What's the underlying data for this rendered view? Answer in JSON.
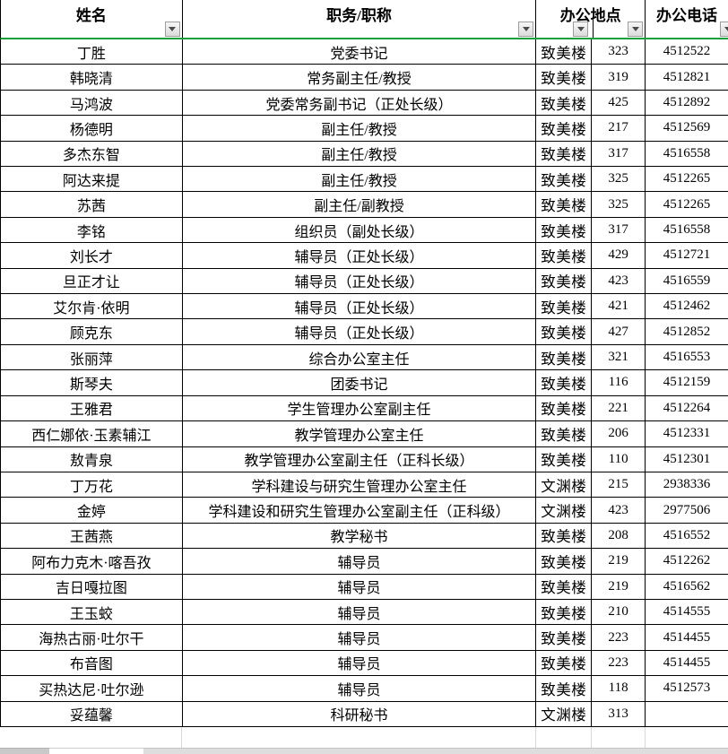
{
  "header": {
    "name": "姓名",
    "position": "职务/职称",
    "location": "办公地点",
    "phone": "办公电话"
  },
  "colors": {
    "selection_green": "#18a03c"
  },
  "rows": [
    {
      "name": "丁胜",
      "position": "党委书记",
      "building": "致美楼",
      "room": "323",
      "phone": "4512522"
    },
    {
      "name": "韩晓清",
      "position": "常务副主任/教授",
      "building": "致美楼",
      "room": "319",
      "phone": "4512821"
    },
    {
      "name": "马鸿波",
      "position": "党委常务副书记（正处长级）",
      "building": "致美楼",
      "room": "425",
      "phone": "4512892"
    },
    {
      "name": "杨德明",
      "position": "副主任/教授",
      "building": "致美楼",
      "room": "217",
      "phone": "4512569"
    },
    {
      "name": "多杰东智",
      "position": "副主任/教授",
      "building": "致美楼",
      "room": "317",
      "phone": "4516558"
    },
    {
      "name": "阿达来提",
      "position": "副主任/教授",
      "building": "致美楼",
      "room": "325",
      "phone": "4512265"
    },
    {
      "name": "苏茜",
      "position": "副主任/副教授",
      "building": "致美楼",
      "room": "325",
      "phone": "4512265"
    },
    {
      "name": "李铭",
      "position": "组织员（副处长级）",
      "building": "致美楼",
      "room": "317",
      "phone": "4516558"
    },
    {
      "name": "刘长才",
      "position": "辅导员（正处长级）",
      "building": "致美楼",
      "room": "429",
      "phone": "4512721"
    },
    {
      "name": "旦正才让",
      "position": "辅导员（正处长级）",
      "building": "致美楼",
      "room": "423",
      "phone": "4516559"
    },
    {
      "name": "艾尔肯·依明",
      "position": "辅导员（正处长级）",
      "building": "致美楼",
      "room": "421",
      "phone": "4512462"
    },
    {
      "name": "顾克东",
      "position": "辅导员（正处长级）",
      "building": "致美楼",
      "room": "427",
      "phone": "4512852"
    },
    {
      "name": "张丽萍",
      "position": "综合办公室主任",
      "building": "致美楼",
      "room": "321",
      "phone": "4516553"
    },
    {
      "name": "斯琴夫",
      "position": "团委书记",
      "building": "致美楼",
      "room": "116",
      "phone": "4512159"
    },
    {
      "name": "王雅君",
      "position": "学生管理办公室副主任",
      "building": "致美楼",
      "room": "221",
      "phone": "4512264"
    },
    {
      "name": "西仁娜依·玉素辅江",
      "position": "教学管理办公室主任",
      "building": "致美楼",
      "room": "206",
      "phone": "4512331"
    },
    {
      "name": "敖青泉",
      "position": "教学管理办公室副主任（正科长级）",
      "building": "致美楼",
      "room": "110",
      "phone": "4512301"
    },
    {
      "name": "丁万花",
      "position": "学科建设与研究生管理办公室主任",
      "building": "文渊楼",
      "room": "215",
      "phone": "2938336"
    },
    {
      "name": "金婷",
      "position": "学科建设和研究生管理办公室副主任（正科级）",
      "building": "文渊楼",
      "room": "423",
      "phone": "2977506"
    },
    {
      "name": "王茜燕",
      "position": "教学秘书",
      "building": "致美楼",
      "room": "208",
      "phone": "4516552"
    },
    {
      "name": "阿布力克木·喀吾孜",
      "position": "辅导员",
      "building": "致美楼",
      "room": "219",
      "phone": "4512262"
    },
    {
      "name": "吉日嘎拉图",
      "position": "辅导员",
      "building": "致美楼",
      "room": "219",
      "phone": "4516562"
    },
    {
      "name": "王玉蛟",
      "position": "辅导员",
      "building": "致美楼",
      "room": "210",
      "phone": "4514555"
    },
    {
      "name": "海热古丽·吐尔干",
      "position": "辅导员",
      "building": "致美楼",
      "room": "223",
      "phone": "4514455"
    },
    {
      "name": "布音图",
      "position": "辅导员",
      "building": "致美楼",
      "room": "223",
      "phone": "4514455"
    },
    {
      "name": "买热达尼·吐尔逊",
      "position": "辅导员",
      "building": "致美楼",
      "room": "118",
      "phone": "4512573"
    },
    {
      "name": "妥蕴馨",
      "position": "科研秘书",
      "building": "文渊楼",
      "room": "313",
      "phone": ""
    }
  ]
}
